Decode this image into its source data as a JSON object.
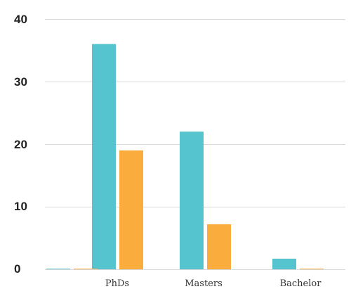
{
  "chart_data": {
    "type": "bar",
    "title": "",
    "xlabel": "",
    "ylabel": "",
    "categories": [
      "",
      "PhDs",
      "Masters",
      "Bachelor"
    ],
    "series": [
      {
        "color": "#56C4CE",
        "values": [
          0.1,
          36,
          22,
          1.7
        ]
      },
      {
        "color": "#FAAD3D",
        "values": [
          0.1,
          19,
          7.2,
          0.1
        ]
      }
    ],
    "ylim": [
      0,
      40
    ],
    "yticks": [
      "0",
      "10",
      "20",
      "30",
      "40"
    ],
    "grid": true,
    "legend": "none"
  },
  "colors": {
    "grid": "#d9d9d9",
    "axis_text": "#222222",
    "category_text": "#333333"
  }
}
